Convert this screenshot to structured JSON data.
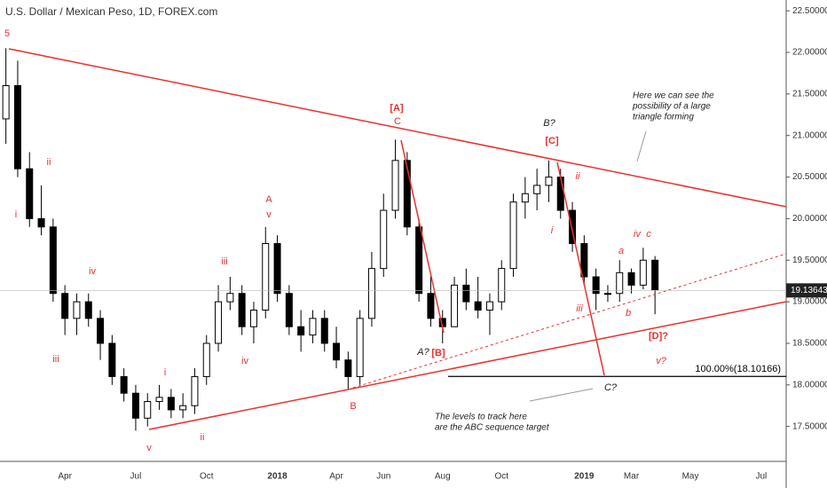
{
  "chart_data": {
    "type": "candlestick",
    "title": "U.S. Dollar / Mexican Peso, 1D, FOREX.com",
    "categories": [
      null,
      null,
      null,
      null,
      null,
      "Apr",
      null,
      null,
      null,
      null,
      null,
      "Jul",
      null,
      null,
      null,
      null,
      null,
      "Oct",
      null,
      null,
      null,
      null,
      null,
      "2018",
      null,
      null,
      null,
      null,
      "Apr",
      null,
      null,
      null,
      "Jun",
      null,
      null,
      null,
      null,
      "Aug",
      null,
      null,
      null,
      null,
      "Oct",
      null,
      null,
      null,
      null,
      null,
      null,
      "2019",
      null,
      null,
      null,
      "Mar",
      null,
      null,
      null,
      null,
      "May",
      null,
      null,
      null,
      null,
      null,
      "Jul",
      null,
      null
    ],
    "open": [
      21.2,
      21.6,
      20.6,
      20.0,
      19.9,
      19.1,
      18.8,
      19.0,
      18.8,
      18.5,
      18.1,
      17.9,
      17.6,
      17.8,
      17.85,
      17.7,
      17.75,
      18.1,
      18.5,
      19.0,
      19.1,
      18.7,
      18.9,
      19.7,
      19.1,
      18.7,
      18.6,
      18.8,
      18.5,
      18.3,
      18.1,
      18.8,
      19.4,
      20.1,
      20.7,
      19.9,
      19.1,
      18.8,
      18.7,
      19.2,
      19.0,
      18.9,
      19.0,
      19.4,
      20.2,
      20.3,
      20.4,
      20.5,
      20.1,
      19.7,
      19.3,
      19.1,
      19.1,
      19.35,
      19.2,
      19.5,
      null,
      null,
      null,
      null,
      null,
      null,
      null,
      null,
      null,
      null,
      null
    ],
    "high": [
      22.05,
      21.9,
      20.8,
      20.4,
      20.0,
      19.2,
      19.1,
      19.1,
      18.9,
      18.6,
      18.2,
      18.0,
      17.9,
      18.0,
      17.95,
      17.9,
      18.2,
      18.6,
      19.2,
      19.3,
      19.2,
      19.0,
      19.9,
      19.8,
      19.2,
      18.9,
      18.9,
      18.9,
      18.7,
      18.4,
      18.9,
      19.6,
      20.3,
      20.95,
      20.8,
      20.0,
      19.3,
      18.9,
      19.3,
      19.4,
      19.3,
      19.1,
      19.5,
      20.3,
      20.5,
      20.6,
      20.7,
      20.6,
      20.2,
      19.8,
      19.4,
      19.2,
      19.5,
      19.4,
      19.65,
      19.55,
      null,
      null,
      null,
      null,
      null,
      null,
      null,
      null,
      null,
      null,
      null
    ],
    "low": [
      20.9,
      20.5,
      19.9,
      19.8,
      19.0,
      18.6,
      18.6,
      18.7,
      18.3,
      18.0,
      17.8,
      17.45,
      17.5,
      17.7,
      17.6,
      17.6,
      17.65,
      18.0,
      18.4,
      18.9,
      18.6,
      18.5,
      18.8,
      19.0,
      18.6,
      18.4,
      18.5,
      18.4,
      18.2,
      17.95,
      18.0,
      18.7,
      19.3,
      20.0,
      19.8,
      19.0,
      18.7,
      18.5,
      18.7,
      18.9,
      18.8,
      18.6,
      18.9,
      19.3,
      20.0,
      20.1,
      20.2,
      20.0,
      19.6,
      19.2,
      18.9,
      19.0,
      19.0,
      19.1,
      19.15,
      18.85,
      null,
      null,
      null,
      null,
      null,
      null,
      null,
      null,
      null,
      null,
      null
    ],
    "close": [
      21.6,
      20.6,
      20.0,
      19.9,
      19.1,
      18.8,
      19.0,
      18.8,
      18.5,
      18.1,
      17.9,
      17.6,
      17.8,
      17.85,
      17.7,
      17.75,
      18.1,
      18.5,
      19.0,
      19.1,
      18.7,
      18.9,
      19.7,
      19.1,
      18.7,
      18.6,
      18.8,
      18.5,
      18.3,
      18.1,
      18.8,
      19.4,
      20.1,
      20.7,
      19.9,
      19.1,
      18.8,
      18.7,
      19.2,
      19.0,
      18.9,
      19.0,
      19.4,
      20.2,
      20.3,
      20.4,
      20.5,
      20.1,
      19.7,
      19.3,
      19.1,
      19.1,
      19.35,
      19.2,
      19.5,
      19.14,
      null,
      null,
      null,
      null,
      null,
      null,
      null,
      null,
      null,
      null,
      null
    ],
    "up_color": "#ffffff",
    "down_color": "#000000",
    "border_color": "#000000",
    "ylim": [
      17.08,
      22.63
    ],
    "yticks": [
      {
        "value": 17.5,
        "label": "17.50000"
      },
      {
        "value": 18,
        "label": "18.00000"
      },
      {
        "value": 18.5,
        "label": "18.50000"
      },
      {
        "value": 19,
        "label": "19.00000"
      },
      {
        "value": 19.5,
        "label": "19.50000"
      },
      {
        "value": 20,
        "label": "20.00000"
      },
      {
        "value": 20.5,
        "label": "20.50000"
      },
      {
        "value": 21,
        "label": "21.00000"
      },
      {
        "value": 21.5,
        "label": "21.50000"
      },
      {
        "value": 22,
        "label": "22.00000"
      },
      {
        "value": 22.5,
        "label": "22.50000"
      }
    ],
    "last_price": 19.13643,
    "level": {
      "value": 18.10166,
      "label": "100.00%(18.10166)"
    },
    "annotations": [
      "5",
      "i",
      "ii",
      "iii",
      "iv",
      "v",
      "i",
      "ii",
      "iii",
      "iv",
      "A",
      "v",
      "B",
      "[A]",
      "C",
      "[B]",
      "[C]",
      "ii",
      "i",
      "iii",
      "a",
      "iv",
      "c",
      "b",
      "[D]?",
      "v?",
      "B?",
      "A?",
      "C?",
      "Here we can see the",
      "possibility of a large",
      "triangle forming",
      "The levels to track here",
      "are the ABC sequence target"
    ]
  }
}
